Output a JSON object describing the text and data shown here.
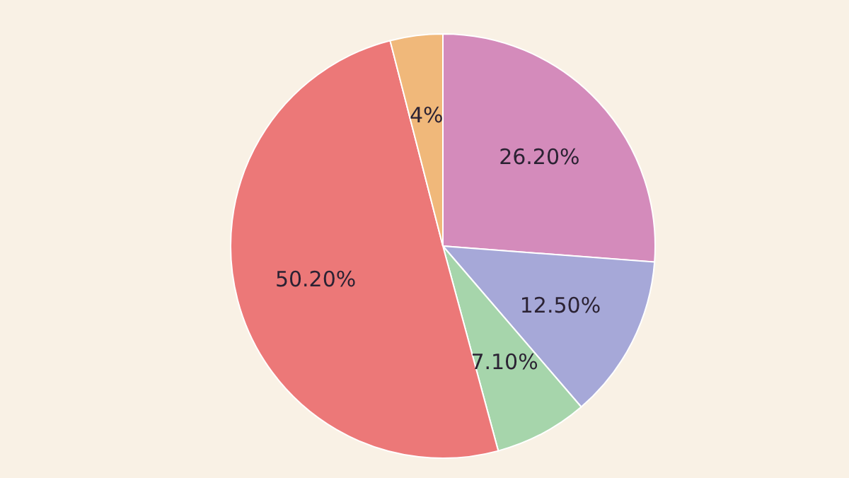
{
  "chart_data": {
    "type": "pie",
    "categories": [
      null,
      null,
      null,
      null,
      null
    ],
    "values": [
      26.2,
      12.5,
      7.1,
      50.2,
      4
    ],
    "colors": [
      "#d48bbb",
      "#a6a8d8",
      "#a6d5ab",
      "#ec7878",
      "#f0b87a"
    ],
    "value_labels": [
      "26.20%",
      "12.50%",
      "7.10%",
      "50.20%",
      "4%"
    ]
  }
}
